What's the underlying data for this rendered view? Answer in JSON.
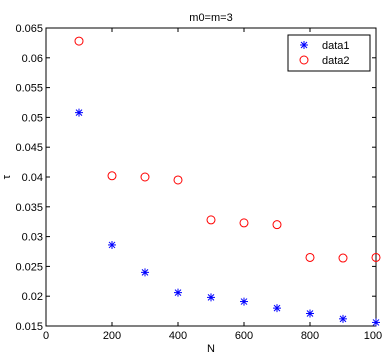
{
  "chart_data": {
    "type": "scatter",
    "title": "m0=m=3",
    "xlabel": "N",
    "ylabel": "τ",
    "xlim": [
      0,
      1000
    ],
    "ylim": [
      0.015,
      0.065
    ],
    "xticks": [
      0,
      200,
      400,
      600,
      800,
      1000
    ],
    "yticks": [
      0.015,
      0.02,
      0.025,
      0.03,
      0.035,
      0.04,
      0.045,
      0.05,
      0.055,
      0.06,
      0.065
    ],
    "xtick_labels": [
      "0",
      "200",
      "400",
      "600",
      "800",
      "1000"
    ],
    "ytick_labels": [
      "0.015",
      "0.02",
      "0.025",
      "0.03",
      "0.035",
      "0.04",
      "0.045",
      "0.05",
      "0.055",
      "0.06",
      "0.065"
    ],
    "grid": false,
    "legend": "top-right",
    "series": [
      {
        "name": "data1",
        "marker": "asterisk",
        "color": "#0000ff",
        "x": [
          100,
          200,
          300,
          400,
          500,
          600,
          700,
          800,
          900,
          1000
        ],
        "y": [
          0.0508,
          0.0286,
          0.024,
          0.0206,
          0.0198,
          0.0191,
          0.018,
          0.0171,
          0.0162,
          0.0156
        ]
      },
      {
        "name": "data2",
        "marker": "circle",
        "color": "#ff0000",
        "x": [
          100,
          200,
          300,
          400,
          500,
          600,
          700,
          800,
          900,
          1000
        ],
        "y": [
          0.0628,
          0.0402,
          0.04,
          0.0395,
          0.0328,
          0.0323,
          0.032,
          0.0265,
          0.0264,
          0.0265
        ]
      }
    ]
  }
}
